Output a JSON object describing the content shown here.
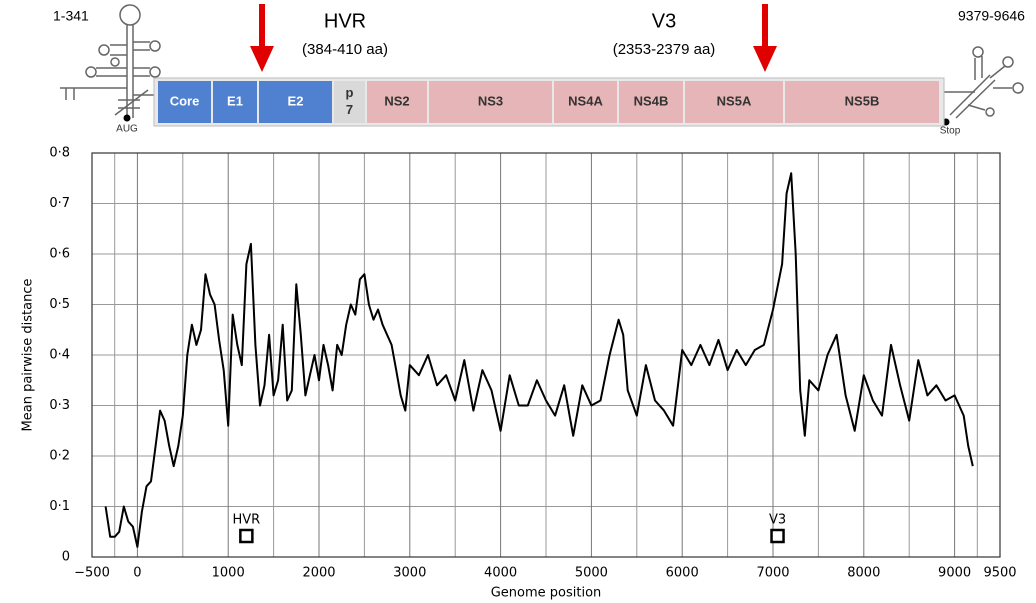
{
  "genome": {
    "utr5": "1-341",
    "utr3": "9379-9646",
    "aug": "AUG",
    "stop": "Stop",
    "regions": [
      {
        "label": "HVR",
        "range": "(384-410 aa)"
      },
      {
        "label": "V3",
        "range": "(2353-2379 aa)"
      }
    ],
    "segments": [
      {
        "lines": [
          "Core"
        ],
        "color": "#4f81d0"
      },
      {
        "lines": [
          "E1"
        ],
        "color": "#4f81d0"
      },
      {
        "lines": [
          "E2"
        ],
        "color": "#4f81d0"
      },
      {
        "lines": [
          "p",
          "7"
        ],
        "color": "#d9d9d9"
      },
      {
        "lines": [
          "NS2"
        ],
        "color": "#e6b5b8"
      },
      {
        "lines": [
          "NS3"
        ],
        "color": "#e6b5b8"
      },
      {
        "lines": [
          "NS4A"
        ],
        "color": "#e6b5b8"
      },
      {
        "lines": [
          "NS4B"
        ],
        "color": "#e6b5b8"
      },
      {
        "lines": [
          "NS5A"
        ],
        "color": "#e6b5b8"
      },
      {
        "lines": [
          "NS5B"
        ],
        "color": "#e6b5b8"
      }
    ]
  },
  "chart_data": {
    "type": "line",
    "y_label": "Mean pairwise distance",
    "x_label": "Genome position",
    "color": "#000000",
    "grid": true,
    "xlim": [
      -500,
      9500
    ],
    "ylim": [
      0,
      0.8
    ],
    "xticks": [
      {
        "value": -500,
        "label": "−500"
      },
      0,
      1000,
      2000,
      3000,
      4000,
      5000,
      6000,
      7000,
      8000,
      9000,
      9500
    ],
    "yticks": [
      0,
      {
        "value": 0.1,
        "label": "0·1"
      },
      {
        "value": 0.2,
        "label": "0·2"
      },
      {
        "value": 0.3,
        "label": "0·3"
      },
      {
        "value": 0.4,
        "label": "0·4"
      },
      {
        "value": 0.5,
        "label": "0·5"
      },
      {
        "value": 0.6,
        "label": "0·6"
      },
      {
        "value": 0.7,
        "label": "0·7"
      },
      {
        "value": 0.8,
        "label": "0·8"
      }
    ],
    "annotations": [
      {
        "text": "HVR",
        "x": 1200
      },
      {
        "text": "V3",
        "x": 7050
      }
    ],
    "x": [
      -350,
      -300,
      -250,
      -200,
      -150,
      -100,
      -50,
      0,
      50,
      100,
      150,
      200,
      250,
      300,
      350,
      400,
      450,
      500,
      550,
      600,
      650,
      700,
      750,
      800,
      850,
      900,
      950,
      1000,
      1050,
      1100,
      1150,
      1200,
      1250,
      1300,
      1350,
      1400,
      1450,
      1500,
      1550,
      1600,
      1650,
      1700,
      1750,
      1800,
      1850,
      1900,
      1950,
      2000,
      2050,
      2100,
      2150,
      2200,
      2250,
      2300,
      2350,
      2400,
      2450,
      2500,
      2550,
      2600,
      2650,
      2700,
      2750,
      2800,
      2850,
      2900,
      2950,
      3000,
      3100,
      3200,
      3300,
      3400,
      3500,
      3600,
      3700,
      3800,
      3900,
      4000,
      4100,
      4200,
      4300,
      4400,
      4500,
      4600,
      4700,
      4800,
      4900,
      5000,
      5100,
      5200,
      5300,
      5350,
      5400,
      5500,
      5600,
      5700,
      5800,
      5900,
      6000,
      6100,
      6200,
      6300,
      6400,
      6500,
      6600,
      6700,
      6800,
      6900,
      7000,
      7100,
      7150,
      7200,
      7250,
      7300,
      7350,
      7400,
      7500,
      7600,
      7700,
      7800,
      7900,
      8000,
      8100,
      8200,
      8300,
      8400,
      8500,
      8600,
      8700,
      8800,
      8900,
      9000,
      9100,
      9150,
      9200
    ],
    "values": [
      0.1,
      0.04,
      0.04,
      0.05,
      0.1,
      0.07,
      0.06,
      0.02,
      0.09,
      0.14,
      0.15,
      0.22,
      0.29,
      0.27,
      0.22,
      0.18,
      0.22,
      0.28,
      0.4,
      0.46,
      0.42,
      0.45,
      0.56,
      0.52,
      0.5,
      0.43,
      0.37,
      0.26,
      0.48,
      0.42,
      0.38,
      0.58,
      0.62,
      0.42,
      0.3,
      0.34,
      0.44,
      0.32,
      0.35,
      0.46,
      0.31,
      0.33,
      0.54,
      0.44,
      0.32,
      0.36,
      0.4,
      0.35,
      0.42,
      0.38,
      0.33,
      0.42,
      0.4,
      0.46,
      0.5,
      0.48,
      0.55,
      0.56,
      0.5,
      0.47,
      0.49,
      0.46,
      0.44,
      0.42,
      0.37,
      0.32,
      0.29,
      0.38,
      0.36,
      0.4,
      0.34,
      0.36,
      0.31,
      0.39,
      0.29,
      0.37,
      0.33,
      0.25,
      0.36,
      0.3,
      0.3,
      0.35,
      0.31,
      0.28,
      0.34,
      0.24,
      0.34,
      0.3,
      0.31,
      0.4,
      0.47,
      0.44,
      0.33,
      0.28,
      0.38,
      0.31,
      0.29,
      0.26,
      0.41,
      0.38,
      0.42,
      0.38,
      0.43,
      0.37,
      0.41,
      0.38,
      0.41,
      0.42,
      0.49,
      0.58,
      0.72,
      0.76,
      0.6,
      0.33,
      0.24,
      0.35,
      0.33,
      0.4,
      0.44,
      0.32,
      0.25,
      0.36,
      0.31,
      0.28,
      0.42,
      0.34,
      0.27,
      0.39,
      0.32,
      0.34,
      0.31,
      0.32,
      0.28,
      0.22,
      0.18
    ]
  }
}
